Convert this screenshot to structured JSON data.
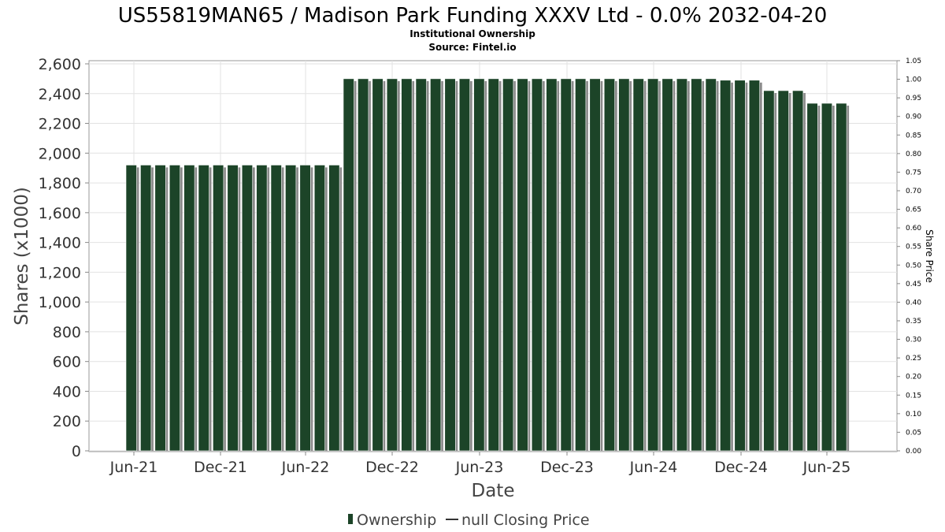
{
  "chart_data": {
    "type": "bar",
    "title": "US55819MAN65 / Madison Park Funding XXXV Ltd - 0.0% 2032-04-20",
    "subtitle_lines": [
      "Institutional Ownership",
      "Source: Fintel.io"
    ],
    "xlabel": "Date",
    "ylabel": "Shares (x1000)",
    "y2label": "Share Price",
    "ylim": [
      0,
      2600
    ],
    "y_ticks": [
      "0",
      "200",
      "400",
      "600",
      "800",
      "1,000",
      "1,200",
      "1,400",
      "1,600",
      "1,800",
      "2,000",
      "2,200",
      "2,400",
      "2,600"
    ],
    "y2lim": [
      0,
      1.05
    ],
    "y2_ticks": [
      "0.00",
      "0.05",
      "0.10",
      "0.15",
      "0.20",
      "0.25",
      "0.30",
      "0.35",
      "0.40",
      "0.45",
      "0.50",
      "0.55",
      "0.60",
      "0.65",
      "0.70",
      "0.75",
      "0.80",
      "0.85",
      "0.90",
      "0.95",
      "1.00",
      "1.05"
    ],
    "x_ticks": [
      "Jun-21",
      "Dec-21",
      "Jun-22",
      "Dec-22",
      "Jun-23",
      "Dec-23",
      "Jun-24",
      "Dec-24",
      "Jun-25"
    ],
    "grid": true,
    "legend_position": "bottom",
    "series": [
      {
        "name": "Ownership",
        "color": "#1c4428",
        "values": [
          1920,
          1920,
          1920,
          1920,
          1920,
          1920,
          1920,
          1920,
          1920,
          1920,
          1920,
          1920,
          1920,
          1920,
          1920,
          2500,
          2500,
          2500,
          2500,
          2500,
          2500,
          2500,
          2500,
          2500,
          2500,
          2500,
          2500,
          2500,
          2500,
          2500,
          2500,
          2500,
          2500,
          2500,
          2500,
          2500,
          2500,
          2500,
          2500,
          2500,
          2500,
          2490,
          2490,
          2490,
          2420,
          2420,
          2420,
          2335,
          2335,
          2335
        ]
      },
      {
        "name": "null Closing Price",
        "color": "#333333",
        "values": []
      }
    ]
  }
}
